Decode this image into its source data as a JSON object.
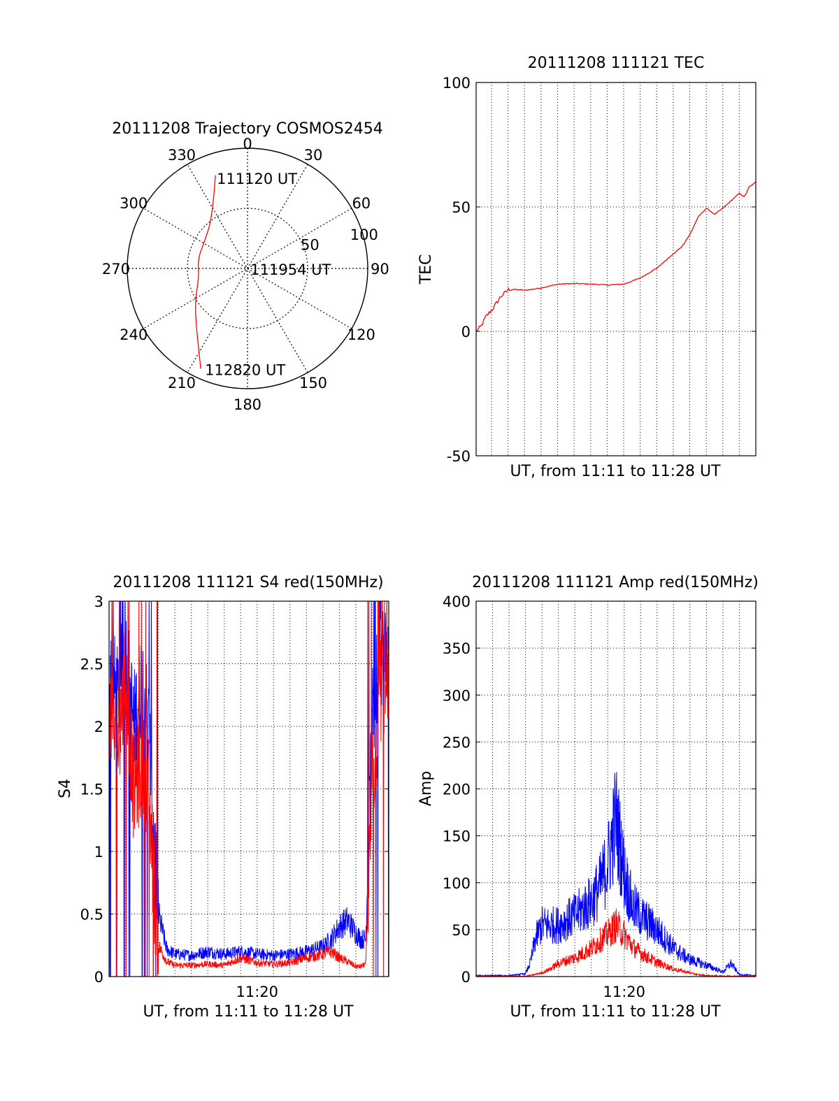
{
  "colors": {
    "red": "#ff0000",
    "blue": "#0000ff",
    "axis": "#000000",
    "grid": "#000000"
  },
  "chart_data": [
    {
      "type": "polar",
      "title": "20111208 Trajectory COSMOS2454",
      "angle_labels": [
        {
          "deg": 0,
          "text": "0"
        },
        {
          "deg": 30,
          "text": "30"
        },
        {
          "deg": 60,
          "text": "60"
        },
        {
          "deg": 90,
          "text": "90"
        },
        {
          "deg": 120,
          "text": "120"
        },
        {
          "deg": 150,
          "text": "150"
        },
        {
          "deg": 180,
          "text": "180"
        },
        {
          "deg": 210,
          "text": "210"
        },
        {
          "deg": 240,
          "text": "240"
        },
        {
          "deg": 270,
          "text": "270"
        },
        {
          "deg": 300,
          "text": "300"
        },
        {
          "deg": 330,
          "text": "330"
        }
      ],
      "radial_ticks": [
        {
          "value": 50,
          "text": "50"
        },
        {
          "value": 100,
          "text": "100"
        }
      ],
      "r_max": 100,
      "trajectory": [
        {
          "az": 341,
          "r": 82
        },
        {
          "az": 335,
          "r": 66
        },
        {
          "az": 320,
          "r": 48
        },
        {
          "az": 300,
          "r": 42
        },
        {
          "az": 280,
          "r": 42
        },
        {
          "az": 260,
          "r": 41
        },
        {
          "az": 240,
          "r": 50
        },
        {
          "az": 225,
          "r": 61
        },
        {
          "az": 205,
          "r": 92
        }
      ],
      "annotations": [
        {
          "text": "111120 UT",
          "az": 339,
          "r": 81
        },
        {
          "text": "111954 UT",
          "az": 270,
          "r": 1
        },
        {
          "text": "112820 UT",
          "az": 205,
          "r": 92
        }
      ]
    },
    {
      "type": "line",
      "title": "20111208 111121 TEC",
      "xlabel": "UT, from 11:11 to 11:28 UT",
      "ylabel": "TEC",
      "xlim": [
        0,
        17
      ],
      "ylim": [
        -50,
        100
      ],
      "yticks": [
        -50,
        0,
        50,
        100
      ],
      "grid": true,
      "series": [
        {
          "color": "red",
          "x": [
            0,
            0.3,
            0.6,
            1.0,
            1.5,
            2.0,
            3.0,
            4.0,
            5.0,
            6.0,
            7.0,
            8.0,
            9.0,
            10.0,
            11.0,
            12.5,
            13.0,
            13.5,
            14.0,
            14.5,
            15.0,
            15.5,
            16.0,
            16.3,
            16.6,
            17.0
          ],
          "y": [
            0,
            2,
            6,
            9,
            14,
            17,
            16.5,
            17.5,
            19,
            19.2,
            19,
            18.6,
            19,
            21.5,
            25.5,
            34,
            39,
            46,
            49.5,
            47,
            49.5,
            52.5,
            55.5,
            54,
            58,
            60
          ]
        }
      ]
    },
    {
      "type": "line",
      "title": "20111208 111121 S4 red(150MHz)",
      "xlabel": "UT, from 11:11 to 11:28 UT",
      "ylabel": "S4",
      "xlim": [
        0,
        17
      ],
      "ylim": [
        0,
        3
      ],
      "yticks": [
        0,
        0.5,
        1,
        1.5,
        2,
        2.5,
        3
      ],
      "ytick_labels": [
        "0",
        "0.5",
        "1",
        "1.5",
        "2",
        "2.5",
        "3"
      ],
      "xticks": [
        9
      ],
      "xtick_labels": [
        "11:20"
      ],
      "grid": true,
      "series": [
        {
          "color": "blue",
          "x": [
            0,
            0.5,
            1.0,
            1.5,
            2.0,
            2.4,
            2.7,
            3.0,
            3.5,
            4.0,
            5.0,
            6.0,
            7.0,
            8.0,
            9.0,
            10.0,
            11.0,
            12.0,
            13.0,
            13.5,
            14.0,
            14.5,
            15.0,
            15.3,
            15.6,
            16.0,
            16.5,
            17.0
          ],
          "y": [
            2.5,
            2.2,
            2.6,
            2.0,
            2.4,
            2.0,
            1.2,
            0.5,
            0.22,
            0.18,
            0.17,
            0.2,
            0.18,
            0.2,
            0.18,
            0.17,
            0.18,
            0.2,
            0.24,
            0.3,
            0.4,
            0.45,
            0.35,
            0.3,
            0.3,
            2.0,
            2.6,
            2.5
          ]
        },
        {
          "color": "red",
          "x": [
            0,
            0.5,
            1.0,
            1.5,
            2.0,
            2.4,
            2.7,
            3.0,
            3.5,
            4.0,
            5.0,
            6.0,
            7.0,
            8.0,
            9.0,
            10.0,
            11.0,
            12.0,
            13.0,
            13.5,
            14.0,
            14.5,
            15.0,
            15.3,
            15.6,
            16.0,
            16.5,
            17.0
          ],
          "y": [
            2.2,
            1.8,
            2.4,
            1.5,
            1.7,
            1.5,
            0.8,
            0.25,
            0.12,
            0.09,
            0.09,
            0.1,
            0.09,
            0.15,
            0.11,
            0.1,
            0.11,
            0.15,
            0.18,
            0.2,
            0.15,
            0.12,
            0.08,
            0.08,
            0.1,
            1.5,
            2.3,
            2.3
          ]
        }
      ]
    },
    {
      "type": "line",
      "title": "20111208 111121 Amp red(150MHz)",
      "xlabel": "UT, from 11:11 to 11:28 UT",
      "ylabel": "Amp",
      "xlim": [
        0,
        17
      ],
      "ylim": [
        0,
        400
      ],
      "yticks": [
        0,
        50,
        100,
        150,
        200,
        250,
        300,
        350,
        400
      ],
      "xticks": [
        9
      ],
      "xtick_labels": [
        "11:20"
      ],
      "grid": true,
      "series": [
        {
          "color": "blue",
          "x": [
            0,
            2.0,
            3.0,
            3.3,
            3.6,
            4.0,
            5.0,
            6.0,
            7.0,
            7.5,
            8.0,
            8.5,
            9.0,
            9.5,
            10.0,
            11.0,
            12.0,
            13.0,
            14.0,
            15.0,
            15.5,
            16.0,
            17.0
          ],
          "y": [
            1,
            1,
            3,
            15,
            40,
            55,
            55,
            65,
            80,
            95,
            120,
            170,
            110,
            75,
            65,
            50,
            30,
            18,
            12,
            5,
            14,
            2,
            1
          ]
        },
        {
          "color": "red",
          "x": [
            0,
            3.0,
            4.0,
            4.5,
            5.0,
            6.0,
            7.0,
            7.5,
            8.0,
            8.5,
            9.0,
            9.5,
            10.0,
            11.0,
            12.0,
            12.5,
            13.0,
            13.5,
            14.0,
            17.0
          ],
          "y": [
            0,
            0,
            4,
            8,
            14,
            20,
            30,
            38,
            45,
            55,
            45,
            32,
            25,
            15,
            8,
            6,
            4,
            2,
            1,
            0
          ]
        }
      ]
    }
  ]
}
